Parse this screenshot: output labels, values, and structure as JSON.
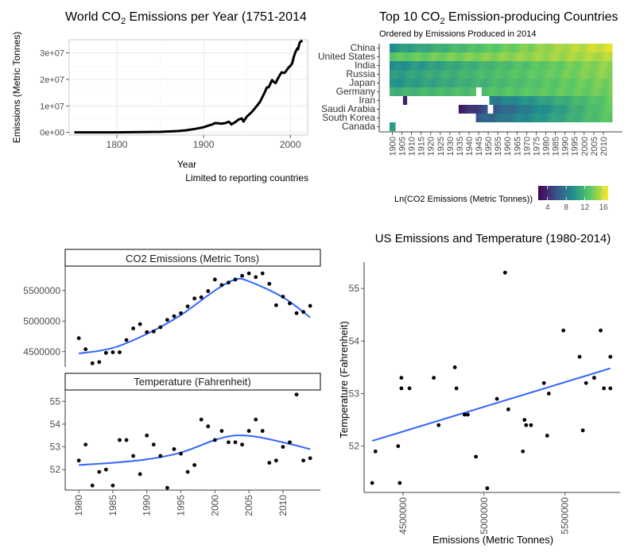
{
  "colors": {
    "line": "#000000",
    "fit": "#3366ff",
    "grid": "#ebebeb",
    "viridis": [
      "#440154",
      "#3b528b",
      "#21908d",
      "#5dc963",
      "#fde725"
    ]
  },
  "chart_data": [
    {
      "id": "world",
      "type": "line",
      "title_prefix": "World  CO",
      "title_sub": "2",
      "title_suffix": "  Emissions per Year (1751-2014",
      "xlabel": "Year",
      "ylabel": "Emissions (Metric Tonnes)",
      "caption": "Limited to reporting countries",
      "xlim": [
        1745,
        2020
      ],
      "ylim": [
        -1000000,
        35000000
      ],
      "xticks": [
        1800,
        1900,
        2000
      ],
      "xtick_labels": [
        "1800",
        "1900",
        "2000"
      ],
      "yticks": [
        0,
        10000000,
        20000000,
        30000000
      ],
      "ytick_labels": [
        "0e+00",
        "1e+07",
        "2e+07",
        "3e+07"
      ],
      "grid": true,
      "x": [
        1751,
        1800,
        1850,
        1870,
        1880,
        1890,
        1900,
        1905,
        1910,
        1913,
        1918,
        1920,
        1925,
        1929,
        1930,
        1932,
        1935,
        1938,
        1940,
        1944,
        1946,
        1950,
        1955,
        1960,
        1965,
        1970,
        1973,
        1975,
        1979,
        1980,
        1983,
        1985,
        1988,
        1990,
        1993,
        1995,
        1998,
        2000,
        2002,
        2004,
        2006,
        2008,
        2009,
        2010,
        2011,
        2012,
        2013,
        2014
      ],
      "y": [
        10000,
        30000,
        200000,
        500000,
        800000,
        1300000,
        1950000,
        2500000,
        3000000,
        3500000,
        3400000,
        3300000,
        3500000,
        4000000,
        3800000,
        3000000,
        3600000,
        4200000,
        4800000,
        5300000,
        4100000,
        6000000,
        7500000,
        9400000,
        11500000,
        14800000,
        17000000,
        17000000,
        19800000,
        19300000,
        18600000,
        19900000,
        21700000,
        22700000,
        22400000,
        23100000,
        24500000,
        25100000,
        26000000,
        28500000,
        30400000,
        31700000,
        31400000,
        33000000,
        34000000,
        34300000,
        34500000,
        34600000
      ]
    },
    {
      "id": "heatmap",
      "type": "heatmap",
      "title_prefix": "Top 10  CO",
      "title_sub": "2",
      "title_suffix": " Emission-producing Countries",
      "subtitle": "Ordered by Emissions Produced in 2014",
      "legend_title": "Ln(CO2 Emissions (Metric Tonnes))",
      "legend_ticks": [
        4,
        8,
        12,
        16
      ],
      "legend_tick_labels": [
        "4",
        "8",
        "12",
        "16"
      ],
      "value_range": [
        2,
        17
      ],
      "year_range": [
        1899,
        2014
      ],
      "xtick_labels": [
        "1900",
        "1905",
        "1910",
        "1915",
        "1920",
        "1925",
        "1930",
        "1935",
        "1940",
        "1945",
        "1950",
        "1955",
        "1960",
        "1965",
        "1970",
        "1975",
        "1980",
        "1985",
        "1990",
        "1995",
        "2000",
        "2005",
        "2010"
      ],
      "rows": [
        {
          "country": "China",
          "start": 1899,
          "v0": 9.5,
          "v1": 16.2,
          "gap": null
        },
        {
          "country": "United States",
          "start": 1899,
          "v0": 13.0,
          "v1": 15.3,
          "gap": null
        },
        {
          "country": "India",
          "start": 1899,
          "v0": 9.0,
          "v1": 14.5,
          "gap": null
        },
        {
          "country": "Russia",
          "start": 1899,
          "v0": 10.0,
          "v1": 14.4,
          "gap": null
        },
        {
          "country": "Japan",
          "start": 1899,
          "v0": 9.5,
          "v1": 14.0,
          "gap": null
        },
        {
          "country": "Germany",
          "start": 1899,
          "v0": 11.5,
          "v1": 13.7,
          "gap": [
            1944,
            1946
          ]
        },
        {
          "country": "Iran",
          "start": 1906,
          "v0": 3.0,
          "v1": 13.3,
          "gap": [
            1908,
            1950
          ]
        },
        {
          "country": "Saudi Arabia",
          "start": 1935,
          "v0": 3.0,
          "v1": 13.3,
          "gap": [
            1950,
            1952
          ]
        },
        {
          "country": "South Korea",
          "start": 1944,
          "v0": 6.0,
          "v1": 13.1,
          "gap": null
        },
        {
          "country": "Canada",
          "start": 1899,
          "v0": 10.0,
          "v1": 13.1,
          "gap": [
            1902,
            2014
          ]
        }
      ]
    },
    {
      "id": "facets",
      "type": "scatter",
      "panels": [
        {
          "strip": "CO2 Emissions (Metric Tons)",
          "ylim": [
            4250000,
            5900000
          ],
          "yticks": [
            4500000,
            5000000,
            5500000
          ],
          "ytick_labels": [
            "4500000",
            "5000000",
            "5500000"
          ],
          "x": [
            1980,
            1981,
            1982,
            1983,
            1984,
            1985,
            1986,
            1987,
            1988,
            1989,
            1990,
            1991,
            1992,
            1993,
            1994,
            1995,
            1996,
            1997,
            1998,
            1999,
            2000,
            2001,
            2002,
            2003,
            2004,
            2005,
            2006,
            2007,
            2008,
            2009,
            2010,
            2011,
            2012,
            2013,
            2014
          ],
          "y": [
            4720000,
            4540000,
            4310000,
            4330000,
            4480000,
            4490000,
            4490000,
            4690000,
            4880000,
            4950000,
            4820000,
            4830000,
            4900000,
            5020000,
            5080000,
            5130000,
            5240000,
            5370000,
            5390000,
            5490000,
            5680000,
            5590000,
            5630000,
            5680000,
            5740000,
            5780000,
            5720000,
            5780000,
            5610000,
            5260000,
            5400000,
            5290000,
            5130000,
            5150000,
            5250000
          ],
          "fit_x": [
            1980,
            1985,
            1990,
            1995,
            2000,
            2003,
            2005,
            2010,
            2014
          ],
          "fit_y": [
            4470000,
            4560000,
            4790000,
            5100000,
            5500000,
            5680000,
            5650000,
            5390000,
            5060000
          ]
        },
        {
          "strip": "Temperature (Fahrenheit)",
          "ylim": [
            51.1,
            55.5
          ],
          "yticks": [
            52,
            53,
            54,
            55
          ],
          "ytick_labels": [
            "52",
            "53",
            "54",
            "55"
          ],
          "x": [
            1980,
            1981,
            1982,
            1983,
            1984,
            1985,
            1986,
            1987,
            1988,
            1989,
            1990,
            1991,
            1992,
            1993,
            1994,
            1995,
            1996,
            1997,
            1998,
            1999,
            2000,
            2001,
            2002,
            2003,
            2004,
            2005,
            2006,
            2007,
            2008,
            2009,
            2010,
            2011,
            2012,
            2013,
            2014
          ],
          "y": [
            52.4,
            53.1,
            51.3,
            51.9,
            52.0,
            51.3,
            53.3,
            53.3,
            52.6,
            51.8,
            53.5,
            53.1,
            52.6,
            51.2,
            52.9,
            52.7,
            51.9,
            52.2,
            54.2,
            53.9,
            53.3,
            53.7,
            53.2,
            53.2,
            53.1,
            53.7,
            54.2,
            53.7,
            52.3,
            52.4,
            53.0,
            53.2,
            55.3,
            52.4,
            52.5
          ],
          "fit_x": [
            1980,
            1985,
            1990,
            1995,
            2000,
            2003,
            2006,
            2010,
            2014
          ],
          "fit_y": [
            52.2,
            52.3,
            52.45,
            52.75,
            53.3,
            53.5,
            53.45,
            53.2,
            52.9
          ]
        }
      ],
      "xlim": [
        1978,
        2015.5
      ],
      "xticks": [
        1980,
        1985,
        1990,
        1995,
        2000,
        2005,
        2010
      ],
      "xtick_labels": [
        "1980",
        "1985",
        "1990",
        "1995",
        "2000",
        "2005",
        "2010"
      ]
    },
    {
      "id": "us",
      "type": "scatter",
      "title": "US Emissions and Temperature (1980-2014)",
      "xlabel": "Emissions (Metric Tonnes)",
      "ylabel": "Temperature (Fahrenheit)",
      "xlim": [
        4260000,
        5840000
      ],
      "ylim": [
        51.12,
        55.5
      ],
      "xticks": [
        4500000,
        5000000,
        5500000
      ],
      "xtick_labels": [
        "4500000",
        "5000000",
        "5500000"
      ],
      "yticks": [
        52,
        53,
        54,
        55
      ],
      "ytick_labels": [
        "52",
        "53",
        "54",
        "55"
      ],
      "x": [
        4310000,
        4330000,
        4470000,
        4480000,
        4490000,
        4490000,
        4540000,
        4690000,
        4720000,
        4820000,
        4830000,
        4880000,
        4900000,
        4950000,
        5020000,
        5080000,
        5130000,
        5150000,
        5240000,
        5250000,
        5260000,
        5290000,
        5370000,
        5390000,
        5400000,
        5490000,
        5590000,
        5610000,
        5630000,
        5680000,
        5680000,
        5720000,
        5740000,
        5780000,
        5780000
      ],
      "y": [
        51.3,
        51.9,
        52.0,
        51.3,
        53.3,
        53.1,
        53.1,
        53.3,
        52.4,
        53.5,
        53.1,
        52.6,
        52.6,
        51.8,
        51.2,
        52.9,
        55.3,
        52.7,
        51.9,
        52.5,
        52.4,
        52.4,
        53.2,
        52.2,
        53.0,
        54.2,
        53.7,
        52.3,
        53.2,
        53.3,
        53.3,
        54.2,
        53.1,
        53.1,
        53.7
      ],
      "fit_x": [
        4310000,
        5780000
      ],
      "fit_y": [
        52.1,
        53.48
      ]
    }
  ]
}
